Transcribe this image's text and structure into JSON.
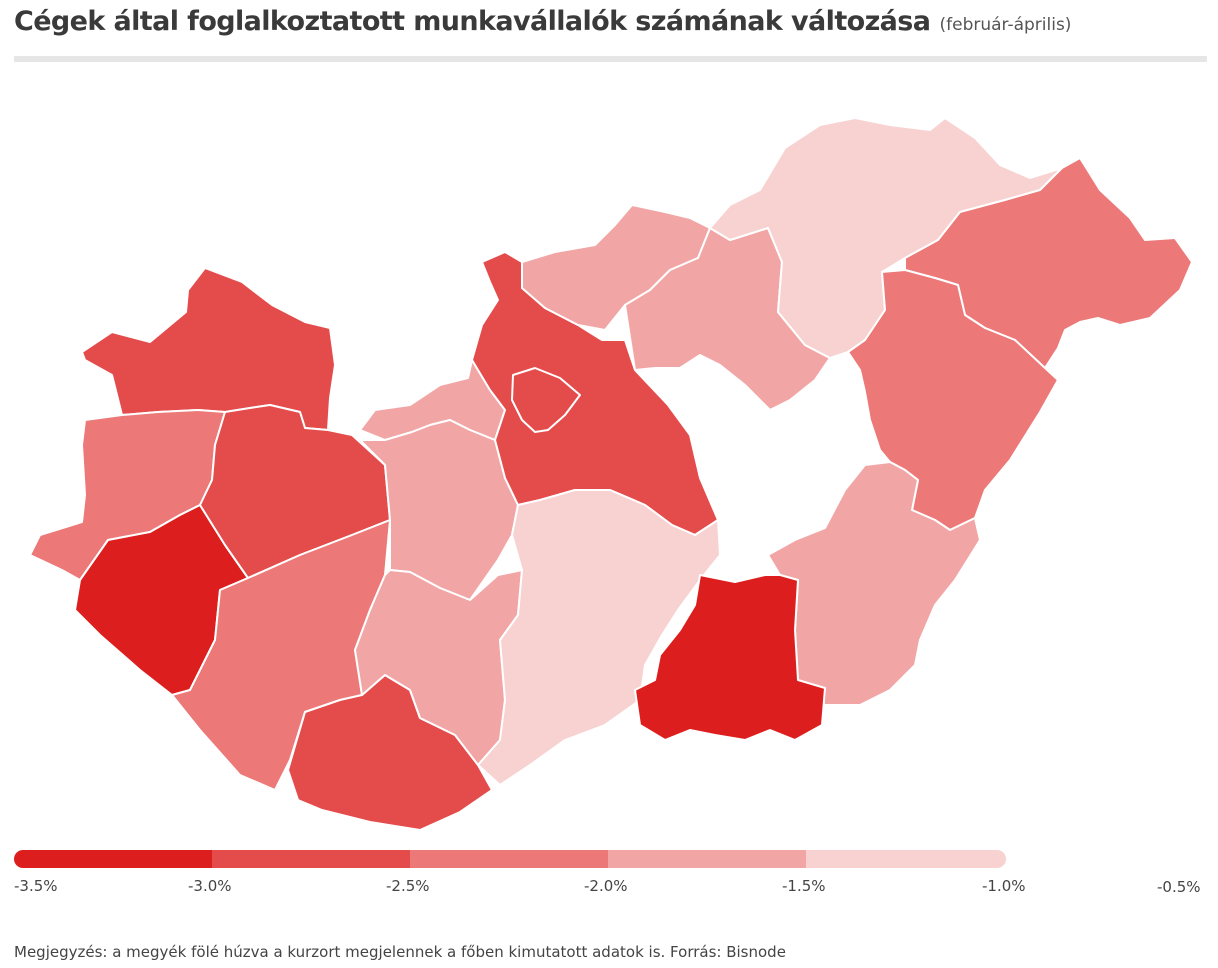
{
  "title": "Cégek által foglalkoztatott munkavállalók számának változása",
  "subtitle": "(február-április)",
  "colors": {
    "bin_1": "#dd1e1e",
    "bin_2": "#e44b4b",
    "bin_3": "#ec7878",
    "bin_4": "#f2a5a5",
    "bin_5": "#f8d1d1",
    "outline": "#ffffff",
    "rule": "#e6e6e6"
  },
  "legend": {
    "bins": [
      {
        "from": -3.5,
        "to": -3.0,
        "color": "#dd1e1e"
      },
      {
        "from": -3.0,
        "to": -2.5,
        "color": "#e44b4b"
      },
      {
        "from": -2.5,
        "to": -2.0,
        "color": "#ec7878"
      },
      {
        "from": -2.0,
        "to": -1.5,
        "color": "#f2a5a5"
      },
      {
        "from": -1.5,
        "to": -1.0,
        "color": "#f8d1d1"
      }
    ],
    "tick_labels": [
      "-3.5%",
      "-3.0%",
      "-2.5%",
      "-2.0%",
      "-1.5%",
      "-1.0%",
      "-0.5%"
    ]
  },
  "map": {
    "regions": [
      {
        "id": "gyor-moson-sopron",
        "bin": 2
      },
      {
        "id": "vas",
        "bin": 3
      },
      {
        "id": "zala",
        "bin": 1
      },
      {
        "id": "veszprem",
        "bin": 2
      },
      {
        "id": "somogy",
        "bin": 3
      },
      {
        "id": "baranya",
        "bin": 2
      },
      {
        "id": "komarom-esztergom",
        "bin": 4
      },
      {
        "id": "fejer",
        "bin": 4
      },
      {
        "id": "tolna",
        "bin": 4
      },
      {
        "id": "pest",
        "bin": 2
      },
      {
        "id": "budapest",
        "bin": 2
      },
      {
        "id": "bacs-kiskun",
        "bin": 5
      },
      {
        "id": "nograd",
        "bin": 4
      },
      {
        "id": "heves",
        "bin": 4
      },
      {
        "id": "borsod-abauj-zemplen",
        "bin": 5
      },
      {
        "id": "szabolcs-szatmar-bereg",
        "bin": 3
      },
      {
        "id": "hajdu-bihar",
        "bin": 3
      },
      {
        "id": "bekes",
        "bin": 4
      },
      {
        "id": "csongrad",
        "bin": 1
      },
      {
        "id": "jasz-nagykun-szolnok",
        "bin": null
      }
    ]
  },
  "note": "Megjegyzés: a megyék fölé húzva a kurzort megjelennek a főben kimutatott adatok is. Forrás: Bisnode"
}
